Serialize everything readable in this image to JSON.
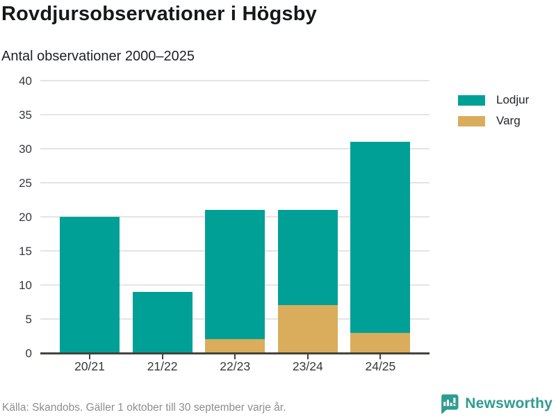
{
  "header": {
    "title": "Rovdjursobservationer i Högsby",
    "subtitle": "Antal observationer 2000–2025"
  },
  "footer": {
    "source": "Källa: Skandobs. Gäller 1 oktober till 30 september varje år.",
    "brand": "Newsworthy"
  },
  "colors": {
    "lodjur": "#00a096",
    "varg": "#d9ad5b",
    "grid": "#e4e4e4",
    "axis": "#43433c",
    "brand_teal": "#2f9c90",
    "text_dark": "#33383c",
    "text_muted": "#8d8d8d"
  },
  "chart_data": {
    "type": "bar",
    "stacked": true,
    "title": "Rovdjursobservationer i Högsby",
    "subtitle": "Antal observationer 2000–2025",
    "categories": [
      "20/21",
      "21/22",
      "22/23",
      "23/24",
      "24/25"
    ],
    "series": [
      {
        "name": "Lodjur",
        "color": "#00a096",
        "values": [
          20,
          9,
          19,
          14,
          28
        ]
      },
      {
        "name": "Varg",
        "color": "#d9ad5b",
        "values": [
          0,
          0,
          2,
          7,
          3
        ]
      }
    ],
    "stack_order_bottom_to_top": [
      "Varg",
      "Lodjur"
    ],
    "totals": [
      20,
      9,
      21,
      21,
      31
    ],
    "xlabel": "",
    "ylabel": "Antal observationer",
    "ylim": [
      0,
      40
    ],
    "yticks": [
      0,
      5,
      10,
      15,
      20,
      25,
      30,
      35,
      40
    ],
    "grid": true,
    "legend_position": "right"
  }
}
